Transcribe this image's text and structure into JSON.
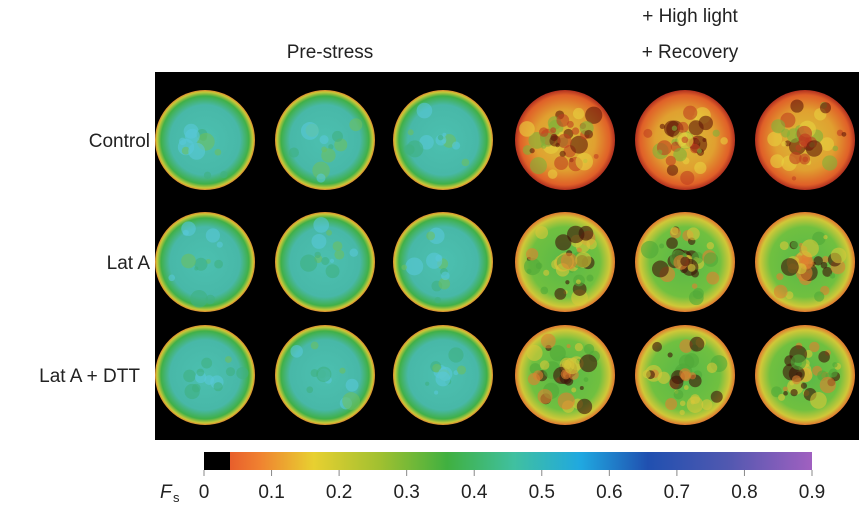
{
  "column_headers": {
    "pre": "Pre-stress",
    "post_line1": "+ High light",
    "post_line2": "+ Recovery"
  },
  "row_labels": [
    "Control",
    "Lat A",
    "Lat A + DTT"
  ],
  "colorbar": {
    "label": "F",
    "label_subscript": "s",
    "lim": [
      0,
      0.9
    ],
    "ticks": [
      0,
      0.1,
      0.2,
      0.3,
      0.4,
      0.5,
      0.6,
      0.7,
      0.8,
      0.9
    ]
  }
}
